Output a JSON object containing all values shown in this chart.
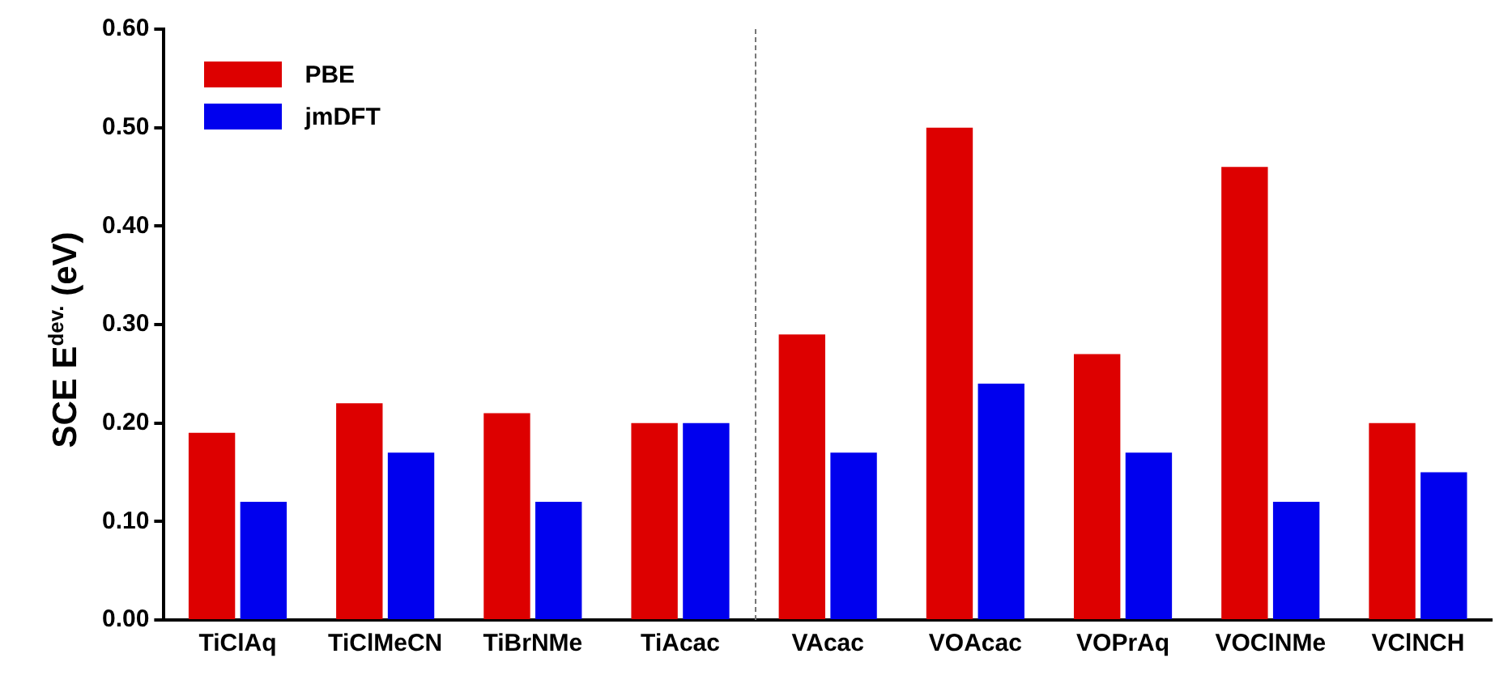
{
  "chart_data": {
    "type": "bar",
    "ylabel": "SCE E$^{dev.}$ (eV)",
    "categories": [
      "TiClAq",
      "TiClMeCN",
      "TiBrNMe",
      "TiAcac",
      "VAcac",
      "VOAcac",
      "VOPrAq",
      "VOClNMe",
      "VClNCH"
    ],
    "series": [
      {
        "name": "PBE",
        "color": "#dd0000",
        "values": [
          0.19,
          0.22,
          0.21,
          0.2,
          0.29,
          0.5,
          0.27,
          0.46,
          0.2
        ]
      },
      {
        "name": "jmDFT",
        "color": "#0000ee",
        "values": [
          0.12,
          0.17,
          0.12,
          0.2,
          0.17,
          0.24,
          0.17,
          0.12,
          0.15
        ]
      }
    ],
    "ylim": [
      0,
      0.6
    ],
    "yticks": [
      {
        "value": 0,
        "label": "0.00"
      },
      {
        "value": 0.1,
        "label": "0.10"
      },
      {
        "value": 0.2,
        "label": "0.20"
      },
      {
        "value": 0.3,
        "label": "0.30"
      },
      {
        "value": 0.4,
        "label": "0.40"
      },
      {
        "value": 0.5,
        "label": "0.50"
      },
      {
        "value": 0.6,
        "label": "0.60"
      }
    ],
    "grid": false,
    "legend": "top left"
  }
}
